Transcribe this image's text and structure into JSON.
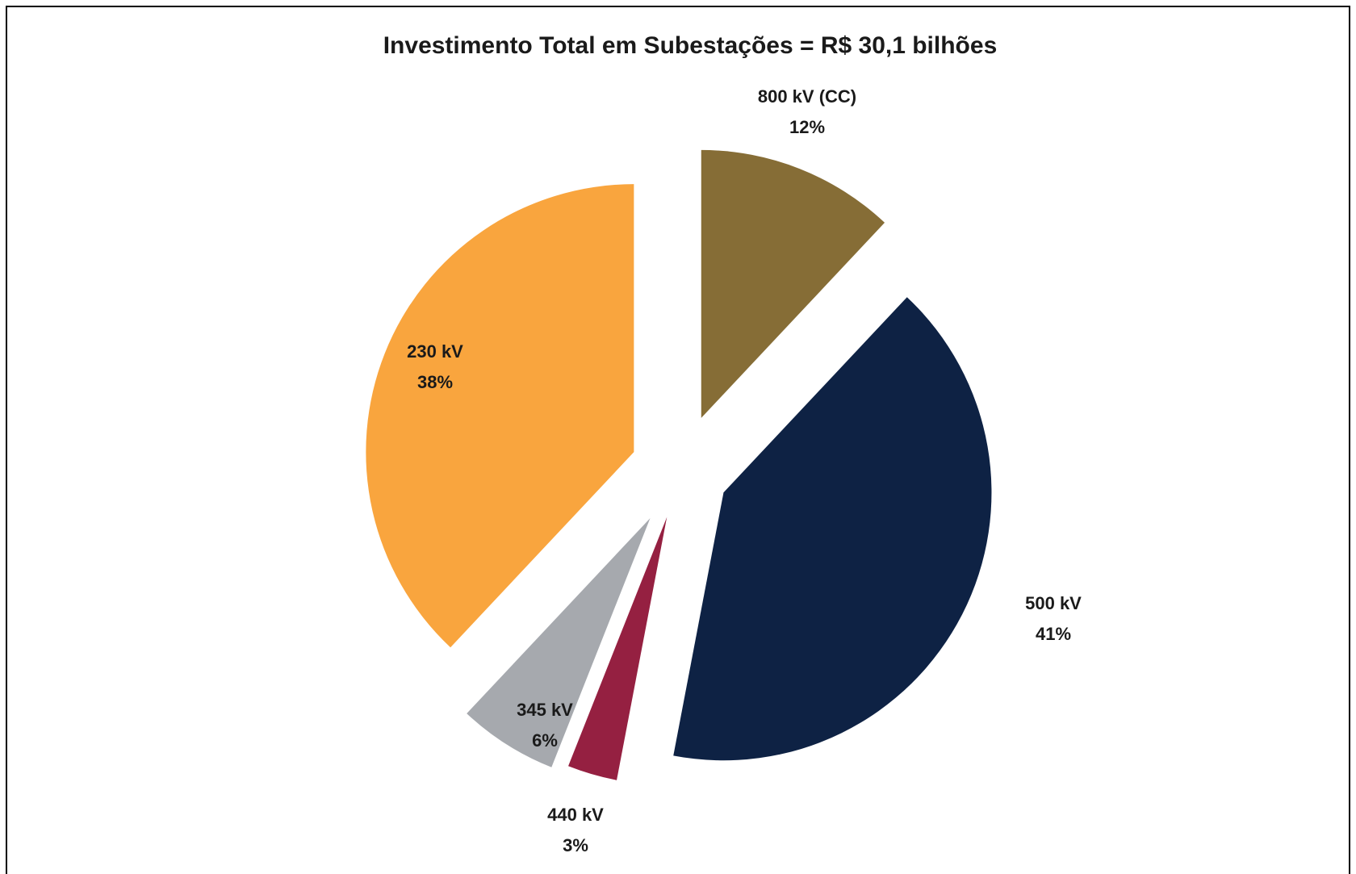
{
  "chart_data": {
    "type": "pie",
    "title": "Investimento Total em Subestações = R$ 30,1 bilhões",
    "categories": [
      "800 kV (CC)",
      "500 kV",
      "440 kV",
      "345 kV",
      "230 kV"
    ],
    "values": [
      12,
      41,
      3,
      6,
      38
    ],
    "value_labels": [
      "12%",
      "41%",
      "3%",
      "6%",
      "38%"
    ],
    "colors": [
      "#866d36",
      "#0e2244",
      "#952041",
      "#a6a9ae",
      "#f9a53e"
    ]
  }
}
